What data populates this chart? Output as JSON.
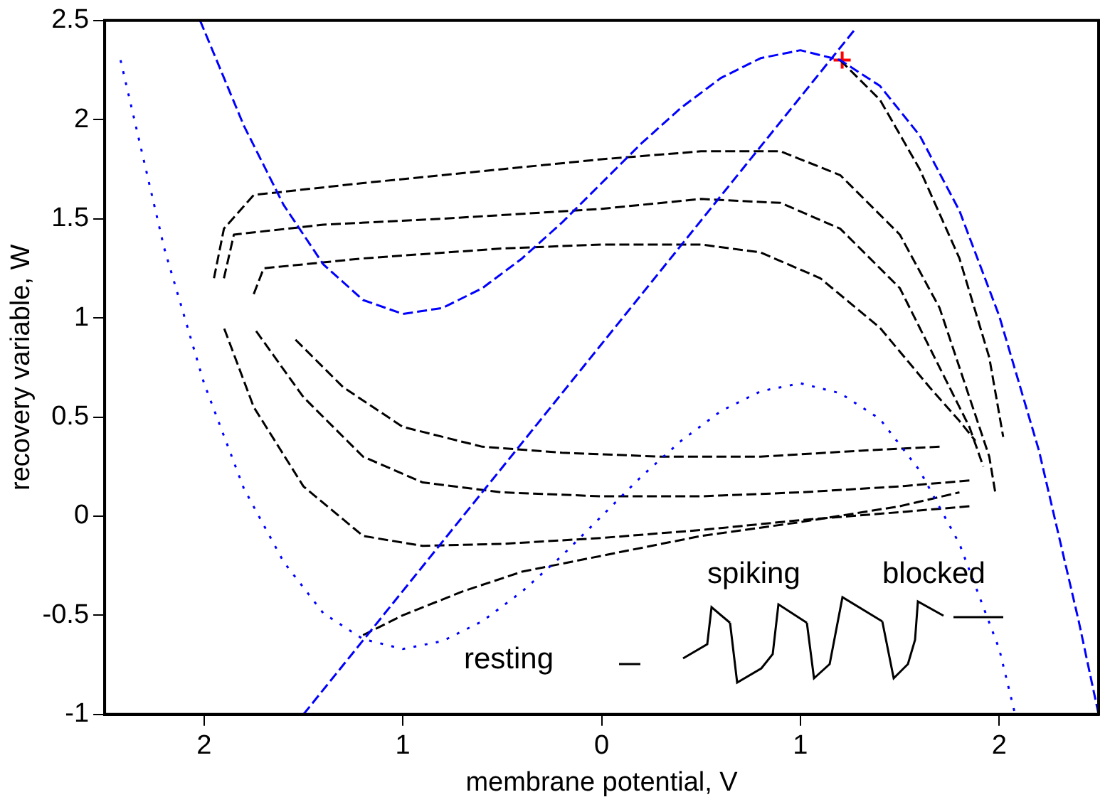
{
  "chart_data": {
    "type": "line",
    "xlabel": "membrane potential, V",
    "ylabel": "recovery variable, W",
    "xlim": [
      -2.5,
      2.5
    ],
    "ylim": [
      -1,
      2.5
    ],
    "xticks": [
      {
        "value": -2,
        "label": "2"
      },
      {
        "value": -1,
        "label": "1"
      },
      0,
      1,
      2
    ],
    "yticks": [
      -1,
      -0.5,
      0,
      0.5,
      1,
      1.5,
      2,
      2.5
    ],
    "grid": false,
    "legend": false,
    "marker": "none",
    "annotations": [
      "spiking",
      "blocked",
      "resting"
    ],
    "series": [
      {
        "color": "#0000ff",
        "line_style": "dashed",
        "x": [
          -2.02,
          -1.8,
          -1.6,
          -1.4,
          -1.2,
          -1,
          -0.8,
          -0.6,
          -0.4,
          -0.2,
          0,
          0.2,
          0.4,
          0.6,
          0.8,
          1,
          1.2,
          1.4,
          1.6,
          1.8,
          2,
          2.2,
          2.4,
          2.5
        ],
        "values": [
          2.5,
          1.97,
          1.57,
          1.27,
          1.09,
          1.02,
          1.05,
          1.15,
          1.3,
          1.48,
          1.68,
          1.88,
          2.06,
          2.21,
          2.31,
          2.35,
          2.3,
          2.17,
          1.92,
          1.54,
          1.01,
          0.33,
          -0.53,
          -1
        ]
      },
      {
        "color": "#0000ff",
        "line_style": "dashed",
        "x": [
          -1.5,
          1.27
        ],
        "values": [
          -1,
          2.45
        ]
      },
      {
        "color": "#0000ff",
        "line_style": "dotted",
        "x": [
          -2.42,
          -2.2,
          -2,
          -1.8,
          -1.6,
          -1.4,
          -1.2,
          -1,
          -0.8,
          -0.6,
          -0.4,
          -0.2,
          0,
          0.2,
          0.4,
          0.6,
          0.8,
          1,
          1.2,
          1.4,
          1.6,
          1.8,
          2,
          2.08
        ],
        "values": [
          2.3,
          1.35,
          0.67,
          0.14,
          -0.23,
          -0.49,
          -0.62,
          -0.67,
          -0.63,
          -0.53,
          -0.38,
          -0.2,
          0,
          0.2,
          0.38,
          0.53,
          0.63,
          0.67,
          0.62,
          0.49,
          0.23,
          -0.14,
          -0.67,
          -1
        ]
      },
      {
        "color": "#000000",
        "line_style": "dashed",
        "x": [
          -1.95,
          -1.9,
          -1.75,
          -1.2,
          -0.5,
          0,
          0.5,
          0.9,
          1.2,
          1.5,
          1.7,
          1.85,
          1.95,
          1.98
        ],
        "values": [
          1.2,
          1.45,
          1.62,
          1.68,
          1.75,
          1.8,
          1.84,
          1.84,
          1.72,
          1.42,
          1.05,
          0.6,
          0.3,
          0.12
        ]
      },
      {
        "color": "#000000",
        "line_style": "dashed",
        "x": [
          1.85,
          1.5,
          1,
          0.5,
          0,
          -0.5,
          -0.9,
          -1.2,
          -1.5,
          -1.75,
          -1.9
        ],
        "values": [
          0.05,
          0.02,
          -0.02,
          -0.07,
          -0.11,
          -0.14,
          -0.15,
          -0.1,
          0.15,
          0.55,
          0.95
        ]
      },
      {
        "color": "#000000",
        "line_style": "dashed",
        "x": [
          -1.9,
          -1.85,
          -1.4,
          -0.8,
          0,
          0.5,
          0.9,
          1.2,
          1.5,
          1.7,
          1.85,
          1.92
        ],
        "values": [
          1.2,
          1.42,
          1.47,
          1.5,
          1.55,
          1.6,
          1.58,
          1.45,
          1.15,
          0.75,
          0.45,
          0.25
        ]
      },
      {
        "color": "#000000",
        "line_style": "dashed",
        "x": [
          1.85,
          1.5,
          1,
          0.5,
          0,
          -0.5,
          -0.9,
          -1.2,
          -1.5,
          -1.75
        ],
        "values": [
          0.18,
          0.15,
          0.12,
          0.1,
          0.1,
          0.12,
          0.17,
          0.3,
          0.6,
          0.95
        ]
      },
      {
        "color": "#000000",
        "line_style": "dashed",
        "x": [
          -1.75,
          -1.7,
          -1.2,
          -0.5,
          0,
          0.5,
          0.8,
          1.1,
          1.4,
          1.65,
          1.8,
          1.88
        ],
        "values": [
          1.12,
          1.25,
          1.3,
          1.35,
          1.37,
          1.37,
          1.33,
          1.2,
          0.95,
          0.65,
          0.48,
          0.38
        ]
      },
      {
        "color": "#000000",
        "line_style": "dashed",
        "x": [
          1.7,
          1.3,
          0.8,
          0.3,
          -0.2,
          -0.6,
          -1,
          -1.3,
          -1.55
        ],
        "values": [
          0.35,
          0.33,
          0.3,
          0.3,
          0.32,
          0.35,
          0.45,
          0.65,
          0.9
        ]
      },
      {
        "color": "#000000",
        "line_style": "dashed",
        "x": [
          -1.2,
          -1,
          -0.7,
          -0.4,
          0,
          0.5,
          1,
          1.5,
          1.8
        ],
        "values": [
          -0.6,
          -0.5,
          -0.38,
          -0.28,
          -0.2,
          -0.1,
          -0.03,
          0.05,
          0.12
        ]
      },
      {
        "color": "#000000",
        "line_style": "dashed",
        "x": [
          1.2,
          1.4,
          1.6,
          1.8,
          1.95,
          2.02
        ],
        "values": [
          2.3,
          2.1,
          1.75,
          1.3,
          0.8,
          0.4
        ]
      },
      {
        "type": "scatter",
        "color": "#ff0000",
        "marker": "cross",
        "x": [
          1.21
        ],
        "values": [
          2.3
        ]
      }
    ]
  }
}
